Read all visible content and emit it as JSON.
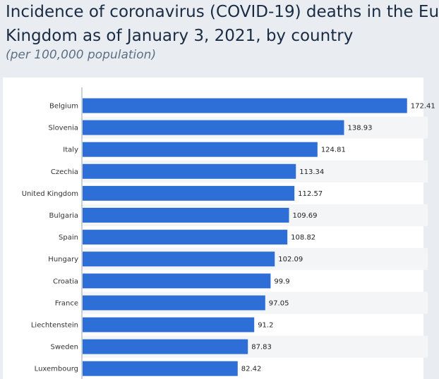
{
  "chart_data": {
    "type": "bar",
    "orientation": "horizontal",
    "title_line1": "Incidence of coronavirus (COVID-19) deaths in the Eu",
    "title_line2": "Kingdom as of January 3, 2021, by country",
    "subtitle": "(per 100,000 population)",
    "categories": [
      "Belgium",
      "Slovenia",
      "Italy",
      "Czechia",
      "United Kingdom",
      "Bulgaria",
      "Spain",
      "Hungary",
      "Croatia",
      "France",
      "Liechtenstein",
      "Sweden",
      "Luxembourg"
    ],
    "values": [
      172.41,
      138.93,
      124.81,
      113.34,
      112.57,
      109.69,
      108.82,
      102.09,
      99.9,
      97.05,
      91.2,
      87.83,
      82.42
    ],
    "value_labels": [
      "172.41",
      "138.93",
      "124.81",
      "113.34",
      "112.57",
      "109.69",
      "108.82",
      "102.09",
      "99.9",
      "97.05",
      "91.2",
      "87.83",
      "82.42"
    ],
    "xlim": [
      0,
      180
    ],
    "bar_color": "#2d6fd6",
    "stripe_color": "#f4f5f7",
    "grid": false,
    "legend": "none"
  }
}
